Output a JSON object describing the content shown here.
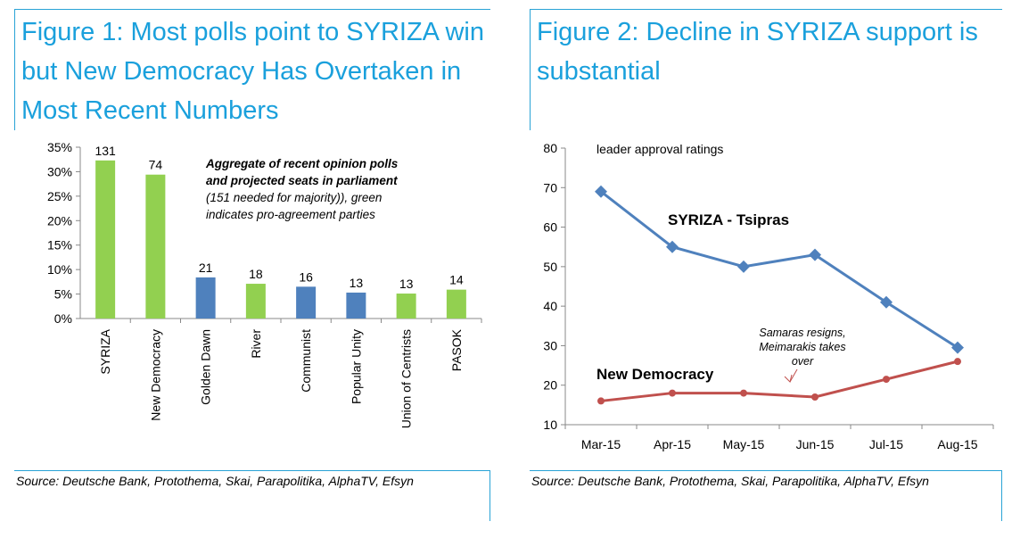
{
  "figure1": {
    "title": "Figure 1: Most polls point to SYRIZA win but New Democracy Has Overtaken in Most Recent Numbers",
    "source": "Source: Deutsche Bank, Protothema, Skai, Parapolitika, AlphaTV, Efsyn",
    "chart_data": {
      "type": "bar",
      "categories": [
        "SYRIZA",
        "New Democracy",
        "Golden Dawn",
        "River",
        "Communist",
        "Popular Unity",
        "Union of Centrists",
        "PASOK"
      ],
      "values": [
        32.3,
        29.4,
        8.4,
        7.1,
        6.5,
        5.3,
        5.1,
        5.9
      ],
      "data_labels": [
        "131",
        "74",
        "21",
        "18",
        "16",
        "13",
        "13",
        "14"
      ],
      "bar_colors": [
        "#92d050",
        "#92d050",
        "#4f81bd",
        "#92d050",
        "#4f81bd",
        "#4f81bd",
        "#92d050",
        "#92d050"
      ],
      "ylim": [
        0,
        35
      ],
      "yticks": [
        0,
        5,
        10,
        15,
        20,
        25,
        30,
        35
      ],
      "ytick_labels": [
        "0%",
        "5%",
        "10%",
        "15%",
        "20%",
        "25%",
        "30%",
        "35%"
      ],
      "annotation_bold": [
        "Aggregate of recent opinion polls",
        "and projected seats in parliament"
      ],
      "annotation": [
        "(151 needed for majority)), green",
        "indicates pro-agreement parties"
      ],
      "grid": false
    }
  },
  "figure2": {
    "title": "Figure 2: Decline in SYRIZA support is substantial",
    "source": "Source: Deutsche Bank, Protothema, Skai, Parapolitika, AlphaTV, Efsyn",
    "chart_data": {
      "type": "line",
      "categories": [
        "Mar-15",
        "Apr-15",
        "May-15",
        "Jun-15",
        "Jul-15",
        "Aug-15"
      ],
      "series": [
        {
          "name": "SYRIZA - Tsipras",
          "values": [
            69,
            55,
            50,
            53,
            41,
            29.5
          ],
          "color": "#4f81bd",
          "marker": "diamond"
        },
        {
          "name": "New Democracy",
          "values": [
            16,
            18,
            18,
            17,
            21.5,
            26
          ],
          "color": "#c0504d",
          "marker": "circle"
        }
      ],
      "x_positions": [
        0,
        1,
        2,
        3,
        3.4,
        4,
        5
      ],
      "nd_path_x": [
        0,
        1,
        2,
        3,
        4,
        5
      ],
      "ylim": [
        10,
        80
      ],
      "yticks": [
        10,
        20,
        30,
        40,
        50,
        60,
        70,
        80
      ],
      "inner_label": "leader approval ratings",
      "annotation": [
        "Samaras resigns,",
        "Meimarakis takes",
        "over"
      ],
      "grid": false
    }
  }
}
